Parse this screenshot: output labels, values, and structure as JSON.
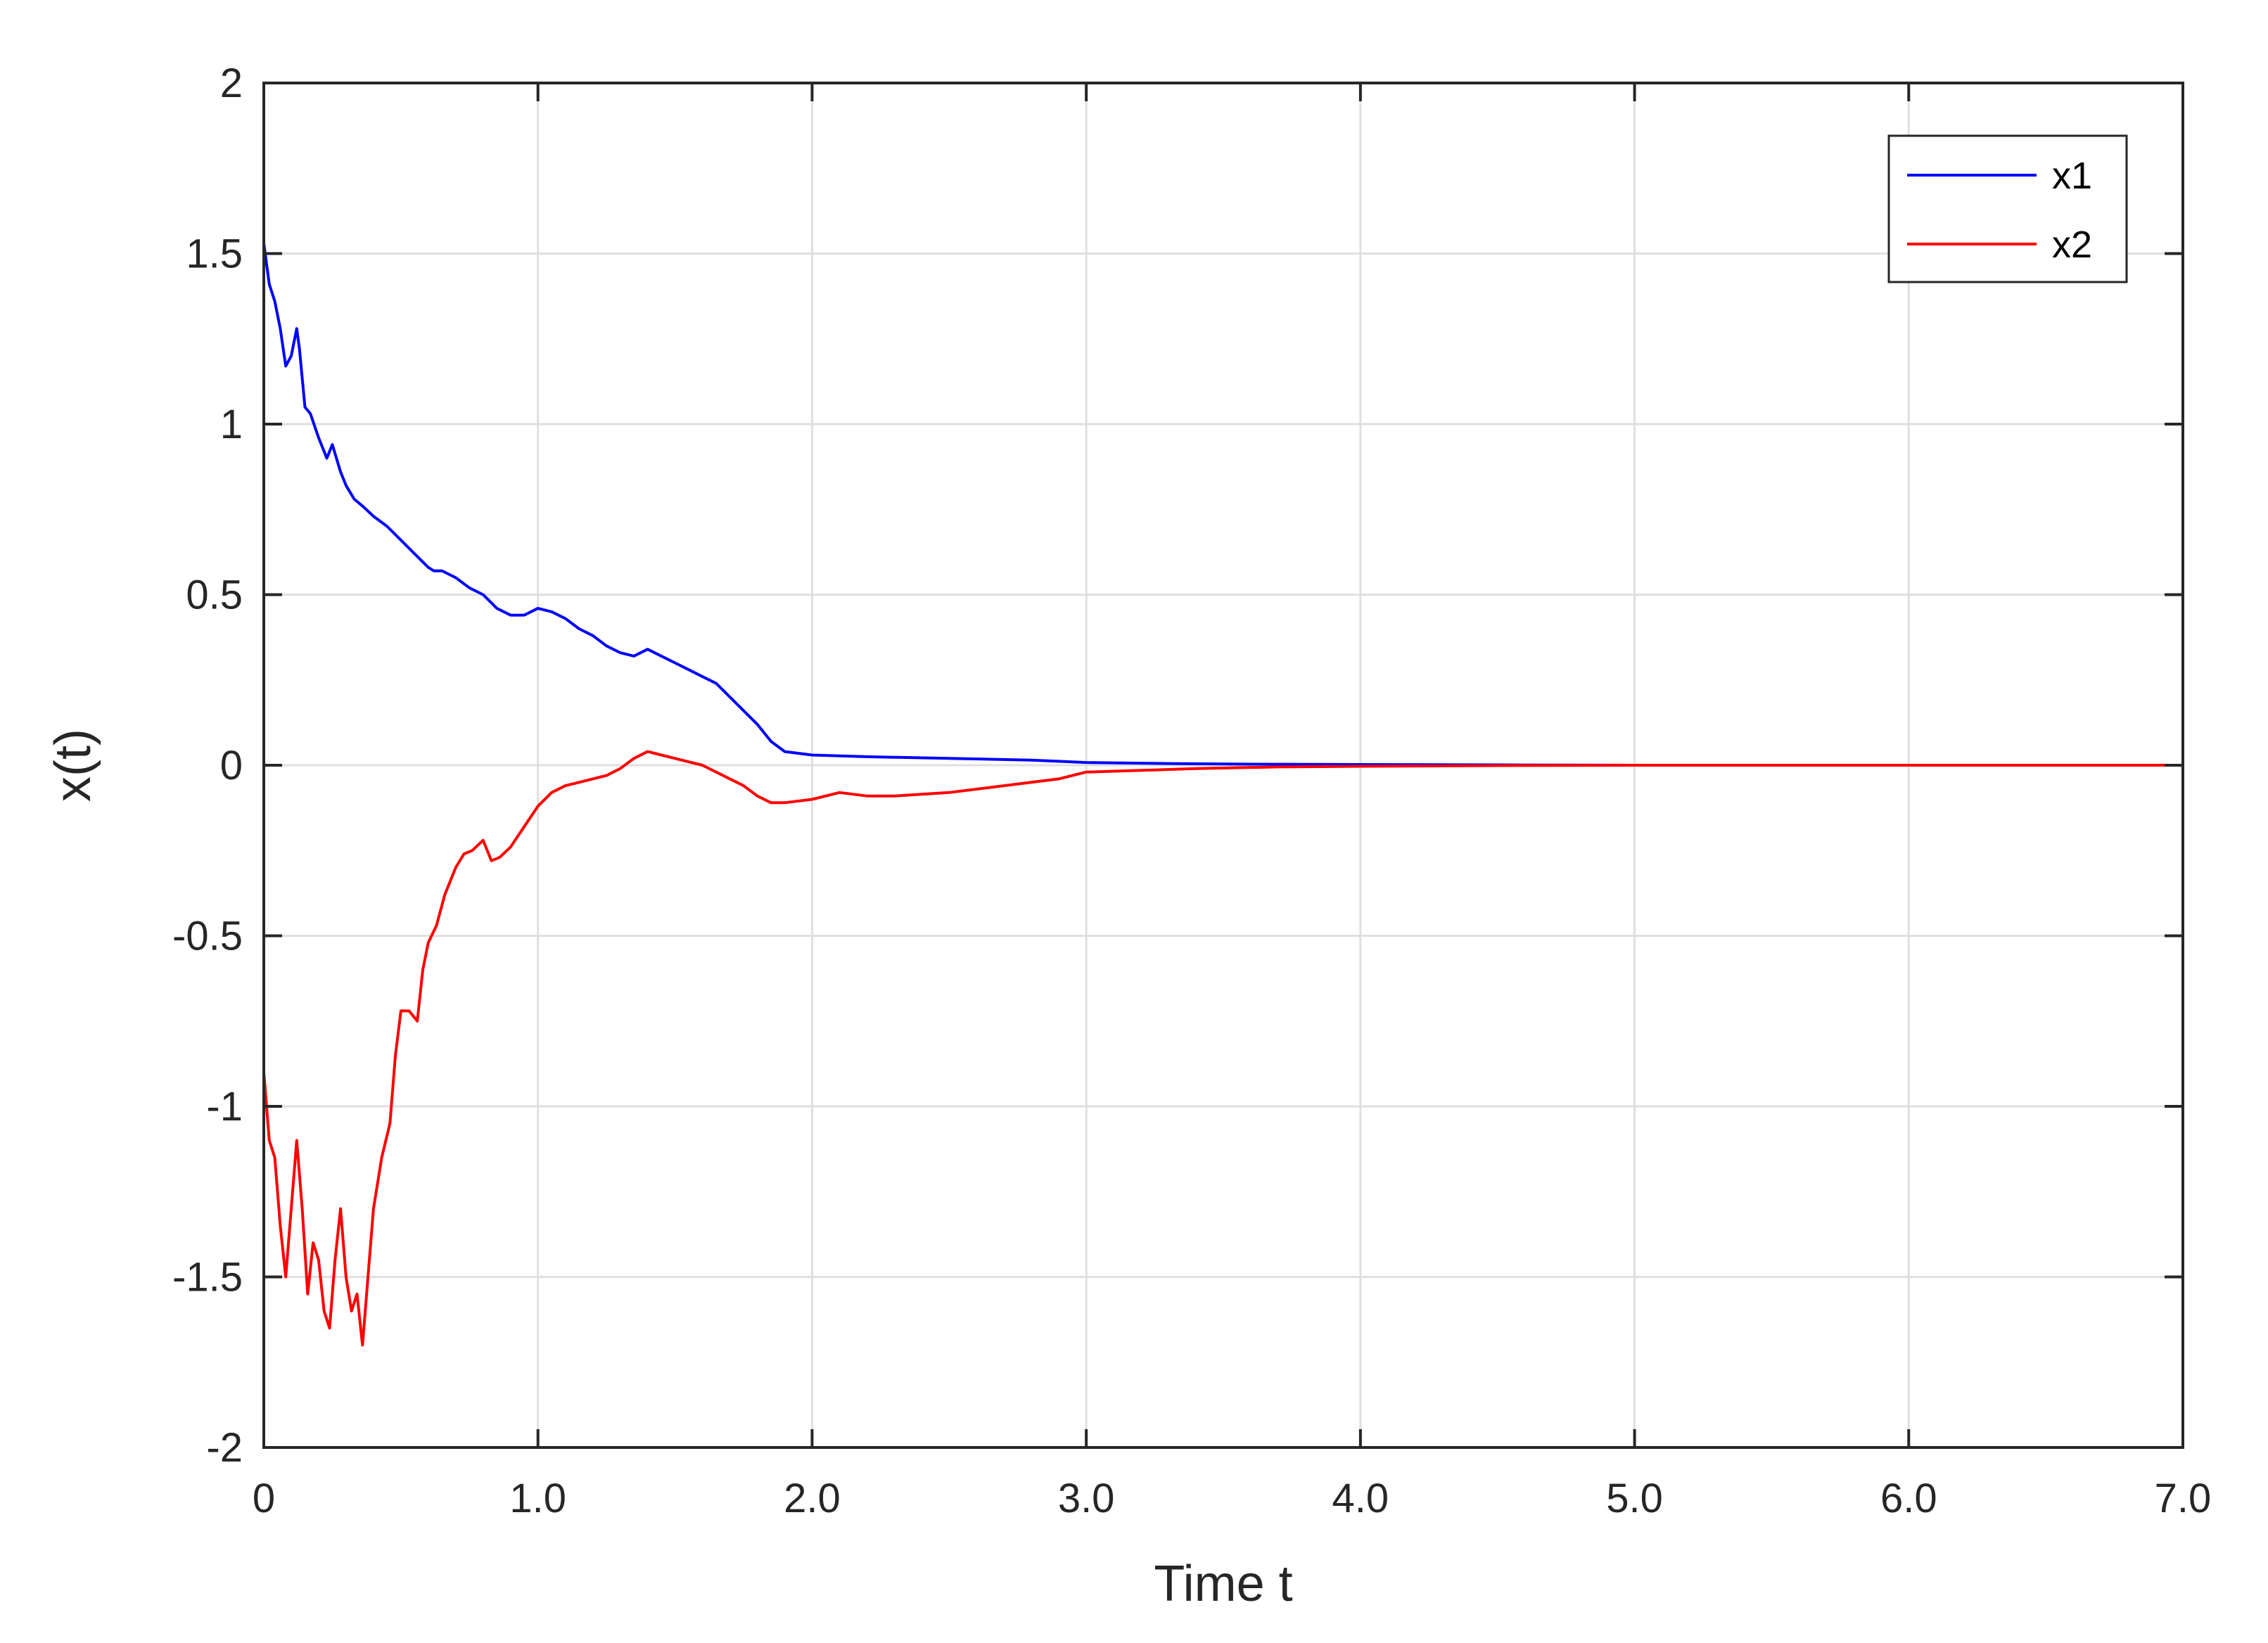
{
  "chart_data": {
    "type": "line",
    "xlabel": "Time t",
    "ylabel": "x(t)",
    "xlim": [
      0,
      7
    ],
    "ylim": [
      -2,
      2
    ],
    "x_ticks": [
      0,
      1,
      2,
      3,
      4,
      5,
      6,
      7
    ],
    "x_tick_labels": [
      "0",
      "1.0",
      "2.0",
      "3.0",
      "4.0",
      "5.0",
      "6.0",
      "7.0"
    ],
    "y_ticks": [
      -2,
      -1.5,
      -1,
      -0.5,
      0,
      0.5,
      1,
      1.5,
      2
    ],
    "y_tick_labels": [
      "-2",
      "-1.5",
      "-1",
      "-0.5",
      "0",
      "0.5",
      "1",
      "1.5",
      "2"
    ],
    "grid": true,
    "legend_position": "top-right",
    "series": [
      {
        "name": "x1",
        "color": "#0000ff",
        "x": [
          0,
          0.02,
          0.04,
          0.06,
          0.08,
          0.1,
          0.12,
          0.13,
          0.15,
          0.17,
          0.2,
          0.23,
          0.25,
          0.28,
          0.3,
          0.33,
          0.36,
          0.4,
          0.45,
          0.5,
          0.55,
          0.6,
          0.62,
          0.65,
          0.7,
          0.75,
          0.8,
          0.85,
          0.9,
          0.95,
          1.0,
          1.05,
          1.1,
          1.15,
          1.2,
          1.25,
          1.3,
          1.35,
          1.4,
          1.45,
          1.5,
          1.55,
          1.6,
          1.65,
          1.7,
          1.75,
          1.8,
          1.85,
          1.9,
          2.0,
          2.2,
          2.5,
          2.8,
          3.0,
          3.3,
          3.6,
          4.0,
          4.5,
          5.0,
          6.0,
          7.0
        ],
        "y": [
          1.53,
          1.41,
          1.36,
          1.28,
          1.17,
          1.2,
          1.28,
          1.22,
          1.05,
          1.03,
          0.96,
          0.9,
          0.94,
          0.86,
          0.82,
          0.78,
          0.76,
          0.73,
          0.7,
          0.66,
          0.62,
          0.58,
          0.57,
          0.57,
          0.55,
          0.52,
          0.5,
          0.46,
          0.44,
          0.44,
          0.46,
          0.45,
          0.43,
          0.4,
          0.38,
          0.35,
          0.33,
          0.32,
          0.34,
          0.32,
          0.3,
          0.28,
          0.26,
          0.24,
          0.2,
          0.16,
          0.12,
          0.07,
          0.04,
          0.03,
          0.025,
          0.02,
          0.015,
          0.008,
          0.005,
          0.003,
          0.002,
          0.001,
          0.0,
          0.0,
          0.0
        ]
      },
      {
        "name": "x2",
        "color": "#ff0000",
        "x": [
          0,
          0.02,
          0.04,
          0.06,
          0.08,
          0.1,
          0.12,
          0.14,
          0.16,
          0.18,
          0.2,
          0.22,
          0.24,
          0.26,
          0.28,
          0.3,
          0.32,
          0.34,
          0.36,
          0.38,
          0.4,
          0.43,
          0.46,
          0.48,
          0.5,
          0.53,
          0.56,
          0.58,
          0.6,
          0.63,
          0.66,
          0.7,
          0.73,
          0.76,
          0.8,
          0.83,
          0.86,
          0.9,
          0.95,
          1.0,
          1.05,
          1.1,
          1.15,
          1.2,
          1.25,
          1.3,
          1.35,
          1.4,
          1.45,
          1.5,
          1.55,
          1.6,
          1.65,
          1.7,
          1.75,
          1.8,
          1.85,
          1.9,
          2.0,
          2.1,
          2.2,
          2.3,
          2.5,
          2.7,
          2.9,
          3.0,
          3.2,
          3.4,
          3.7,
          4.0,
          4.5,
          5.0,
          6.0,
          7.0
        ],
        "y": [
          -0.9,
          -1.1,
          -1.15,
          -1.35,
          -1.5,
          -1.3,
          -1.1,
          -1.3,
          -1.55,
          -1.4,
          -1.45,
          -1.6,
          -1.65,
          -1.45,
          -1.3,
          -1.5,
          -1.6,
          -1.55,
          -1.7,
          -1.5,
          -1.3,
          -1.15,
          -1.05,
          -0.85,
          -0.72,
          -0.72,
          -0.75,
          -0.6,
          -0.52,
          -0.47,
          -0.38,
          -0.3,
          -0.26,
          -0.25,
          -0.22,
          -0.28,
          -0.27,
          -0.24,
          -0.18,
          -0.12,
          -0.08,
          -0.06,
          -0.05,
          -0.04,
          -0.03,
          -0.01,
          0.02,
          0.04,
          0.03,
          0.02,
          0.01,
          0.0,
          -0.02,
          -0.04,
          -0.06,
          -0.09,
          -0.11,
          -0.11,
          -0.1,
          -0.08,
          -0.09,
          -0.09,
          -0.08,
          -0.06,
          -0.04,
          -0.02,
          -0.015,
          -0.01,
          -0.005,
          -0.003,
          -0.001,
          0.0,
          0.0,
          0.0
        ]
      }
    ]
  }
}
